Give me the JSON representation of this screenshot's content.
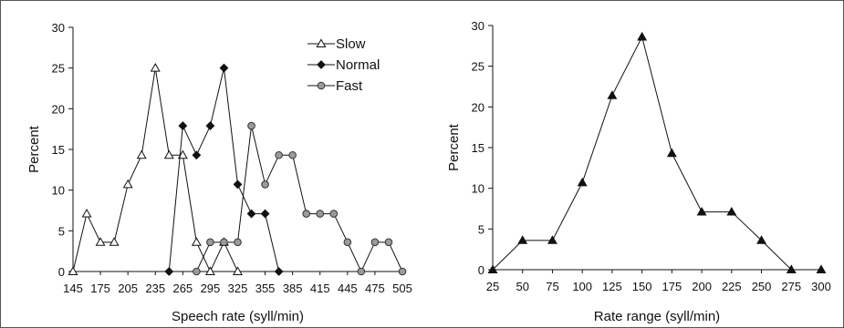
{
  "chart_data": [
    {
      "type": "line",
      "xlabel": "Speech rate (syll/min)",
      "ylabel": "Percent",
      "ylim": [
        0,
        30
      ],
      "xlim": [
        145,
        505
      ],
      "x_ticks": [
        145,
        175,
        205,
        235,
        265,
        295,
        325,
        355,
        385,
        415,
        445,
        475,
        505
      ],
      "y_ticks": [
        0,
        5,
        10,
        15,
        20,
        25,
        30
      ],
      "grid": false,
      "legend_position": "top-right",
      "series": [
        {
          "name": "Slow",
          "marker": "open-triangle",
          "x": [
            145,
            160,
            175,
            190,
            205,
            220,
            235,
            250,
            265,
            280,
            295,
            310,
            325
          ],
          "y": [
            0,
            7.1,
            3.6,
            3.6,
            10.7,
            14.3,
            25,
            14.3,
            14.3,
            3.6,
            0,
            3.6,
            0
          ]
        },
        {
          "name": "Normal",
          "marker": "filled-diamond",
          "x": [
            250,
            265,
            280,
            295,
            310,
            325,
            340,
            355,
            370
          ],
          "y": [
            0,
            17.9,
            14.3,
            17.9,
            25,
            10.7,
            7.1,
            7.1,
            0
          ]
        },
        {
          "name": "Fast",
          "marker": "filled-grey-circle",
          "x": [
            280,
            295,
            310,
            325,
            340,
            355,
            370,
            385,
            400,
            415,
            430,
            445,
            460,
            475,
            490,
            505
          ],
          "y": [
            0,
            3.6,
            3.6,
            3.6,
            17.9,
            10.7,
            14.3,
            14.3,
            7.1,
            7.1,
            7.1,
            3.6,
            0,
            3.6,
            3.6,
            0
          ]
        }
      ]
    },
    {
      "type": "line",
      "xlabel": "Rate range (syll/min)",
      "ylabel": "Percent",
      "ylim": [
        0,
        30
      ],
      "xlim": [
        25,
        300
      ],
      "x_ticks": [
        25,
        50,
        75,
        100,
        125,
        150,
        175,
        200,
        225,
        250,
        275,
        300
      ],
      "y_ticks": [
        0,
        5,
        10,
        15,
        20,
        25,
        30
      ],
      "grid": false,
      "series": [
        {
          "marker": "filled-triangle",
          "x": [
            25,
            50,
            75,
            100,
            125,
            150,
            175,
            200,
            225,
            250,
            275,
            300
          ],
          "y": [
            0,
            3.6,
            3.6,
            10.7,
            21.4,
            28.6,
            14.3,
            7.1,
            7.1,
            3.6,
            0,
            0
          ]
        }
      ]
    }
  ]
}
